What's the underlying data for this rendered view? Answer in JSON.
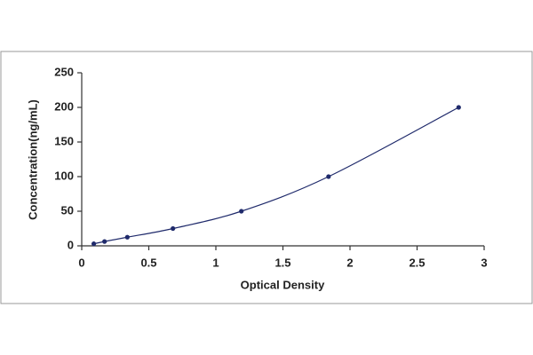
{
  "chart_data": {
    "type": "scatter",
    "x_label": "Optical Density",
    "y_label": "Concentration(ng/mL)",
    "x": [
      0.09,
      0.17,
      0.34,
      0.68,
      1.19,
      1.84,
      2.81
    ],
    "series": [
      {
        "color": "#1f2a6b",
        "values": [
          3,
          6.25,
          12.5,
          25,
          50,
          100,
          200
        ]
      }
    ],
    "fit_line": true,
    "xlim": [
      0,
      3
    ],
    "xticks": [
      0,
      0.5,
      1,
      1.5,
      2,
      2.5,
      3
    ],
    "ylim": [
      0,
      250
    ],
    "yticks": [
      0,
      50,
      100,
      150,
      200,
      250
    ],
    "grid": false
  }
}
